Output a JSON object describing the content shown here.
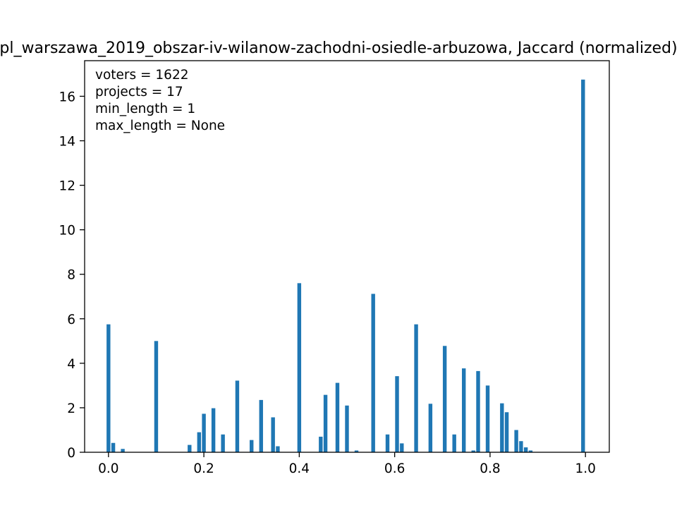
{
  "chart_data": {
    "type": "bar",
    "title": "pl_warszawa_2019_obszar-iv-wilanow-zachodni-osiedle-arbuzowa, Jaccard (normalized)",
    "annotations": [
      "voters = 1622",
      "projects = 17",
      "min_length = 1",
      "max_length = None"
    ],
    "xlim": [
      -0.05,
      1.05
    ],
    "ylim": [
      0,
      17.6
    ],
    "xticks": [
      0.0,
      0.2,
      0.4,
      0.6,
      0.8,
      1.0
    ],
    "xtick_labels": [
      "0.0",
      "0.2",
      "0.4",
      "0.6",
      "0.8",
      "1.0"
    ],
    "yticks": [
      0,
      2,
      4,
      6,
      8,
      10,
      12,
      14,
      16
    ],
    "ytick_labels": [
      "0",
      "2",
      "4",
      "6",
      "8",
      "10",
      "12",
      "14",
      "16"
    ],
    "bin_width": 0.01,
    "bar_color": "#1f77b4",
    "grid": false,
    "bins": [
      {
        "x": 0.0,
        "y": 5.75
      },
      {
        "x": 0.01,
        "y": 0.42
      },
      {
        "x": 0.03,
        "y": 0.15
      },
      {
        "x": 0.1,
        "y": 5.0
      },
      {
        "x": 0.17,
        "y": 0.33
      },
      {
        "x": 0.19,
        "y": 0.9
      },
      {
        "x": 0.2,
        "y": 1.73
      },
      {
        "x": 0.22,
        "y": 1.98
      },
      {
        "x": 0.24,
        "y": 0.8
      },
      {
        "x": 0.27,
        "y": 3.22
      },
      {
        "x": 0.3,
        "y": 0.55
      },
      {
        "x": 0.32,
        "y": 2.35
      },
      {
        "x": 0.345,
        "y": 1.57
      },
      {
        "x": 0.355,
        "y": 0.27
      },
      {
        "x": 0.4,
        "y": 7.6
      },
      {
        "x": 0.445,
        "y": 0.7
      },
      {
        "x": 0.455,
        "y": 2.58
      },
      {
        "x": 0.48,
        "y": 3.12
      },
      {
        "x": 0.5,
        "y": 2.1
      },
      {
        "x": 0.52,
        "y": 0.08
      },
      {
        "x": 0.555,
        "y": 7.12
      },
      {
        "x": 0.585,
        "y": 0.8
      },
      {
        "x": 0.605,
        "y": 3.42
      },
      {
        "x": 0.615,
        "y": 0.4
      },
      {
        "x": 0.645,
        "y": 5.75
      },
      {
        "x": 0.675,
        "y": 2.18
      },
      {
        "x": 0.705,
        "y": 4.78
      },
      {
        "x": 0.725,
        "y": 0.8
      },
      {
        "x": 0.745,
        "y": 3.77
      },
      {
        "x": 0.765,
        "y": 0.08
      },
      {
        "x": 0.775,
        "y": 3.65
      },
      {
        "x": 0.795,
        "y": 3.0
      },
      {
        "x": 0.825,
        "y": 2.2
      },
      {
        "x": 0.835,
        "y": 1.8
      },
      {
        "x": 0.855,
        "y": 1.0
      },
      {
        "x": 0.865,
        "y": 0.5
      },
      {
        "x": 0.875,
        "y": 0.22
      },
      {
        "x": 0.885,
        "y": 0.08
      },
      {
        "x": 0.995,
        "y": 16.75
      }
    ]
  }
}
